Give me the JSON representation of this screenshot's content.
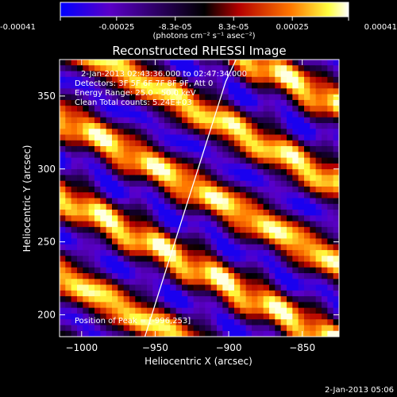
{
  "colorbar": {
    "ticks": [
      "-0.00041",
      "-0.00025",
      "-8.3e-05",
      "8.3e-05",
      "0.00025",
      "0.00041"
    ],
    "tick_values": [
      -0.00041,
      -0.00025,
      -8.3e-05,
      8.3e-05,
      0.00025,
      0.00041
    ],
    "range": [
      -0.00041,
      0.00041
    ],
    "unit_label": "(photons cm⁻² s⁻¹ asec⁻²)",
    "colormap": [
      "#0000ff",
      "#5a00c8",
      "#000000",
      "#b40000",
      "#ff7800",
      "#ffff40",
      "#ffffff"
    ]
  },
  "chart_data": {
    "type": "heatmap",
    "title": "Reconstructed RHESSI Image",
    "xlabel": "Heliocentric X (arcsec)",
    "ylabel": "Heliocentric Y (arcsec)",
    "xlim": [
      -1015,
      -825
    ],
    "ylim": [
      185,
      375
    ],
    "x_ticks": [
      -1000,
      -950,
      -900,
      -850
    ],
    "y_ticks": [
      200,
      250,
      300,
      350
    ],
    "x_tick_labels": [
      "−1000",
      "−950",
      "−900",
      "−850"
    ],
    "y_tick_labels": [
      "200",
      "250",
      "300",
      "350"
    ],
    "annotations": [
      "2-Jan-2013 02:43:36.000 to 02:47:34.000",
      "Detectors: 3F 5F 6F 7F 8F 9F, Att 0",
      "Energy Range: 25.0 - 50.0 keV",
      "Clean    Total counts: 5.24E+03"
    ],
    "peak_label": "Position of Peak = [-996,253]",
    "peak_position": [
      -996,
      253
    ],
    "limb_curve": {
      "x": [
        -957,
        -946,
        -935,
        -924,
        -913,
        -902,
        -895
      ],
      "y": [
        185,
        220,
        255,
        290,
        325,
        360,
        375
      ]
    },
    "pattern": {
      "description": "diagonal stripe pattern descending left to right",
      "stripe_period_arcsec": 48,
      "stripe_direction_deg": -28
    }
  },
  "footer_timestamp": "2-Jan-2013 05:06"
}
